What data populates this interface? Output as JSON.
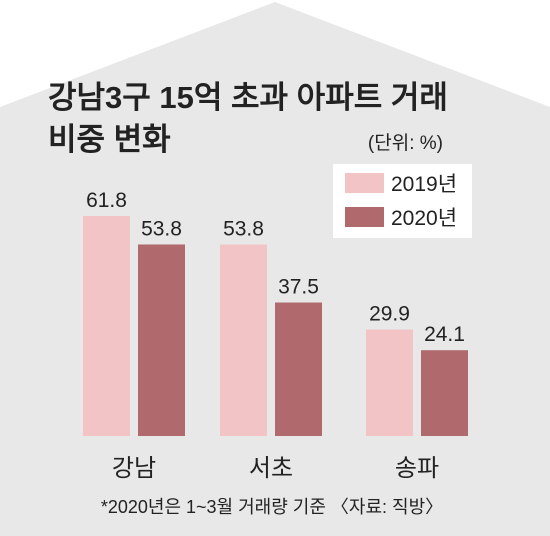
{
  "title_line1": "강남3구 15억 초과 아파트 거래",
  "title_line2": "비중 변화",
  "unit": "(단위: %)",
  "footnote": "*2020년은 1~3월 거래량 기준 〈자료: 직방〉",
  "colors": {
    "background": "#e8e8e8",
    "series_2019": "#f2c4c6",
    "series_2020": "#b06a6e",
    "text": "#222222"
  },
  "chart_data": {
    "type": "bar",
    "title": "강남3구 15억 초과 아파트 거래 비중 변화",
    "categories": [
      "강남",
      "서초",
      "송파"
    ],
    "series": [
      {
        "name": "2019년",
        "values": [
          61.8,
          53.8,
          29.9
        ]
      },
      {
        "name": "2020년",
        "values": [
          53.8,
          37.5,
          24.1
        ]
      }
    ],
    "ylim": [
      0,
      70
    ],
    "grid": false,
    "legend": "top-right",
    "unit": "%"
  }
}
